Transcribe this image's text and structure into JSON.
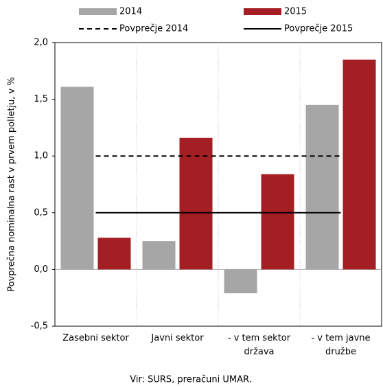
{
  "chart_data": {
    "type": "bar",
    "y_label": "Povprečna nominalna rast v prvem polletju, v %",
    "source": "Vir: SURS, preračuni UMAR.",
    "categories": [
      "Zasebni sektor",
      "Javni sektor",
      "- v tem sektor\ndržava",
      "- v tem javne\ndružbe"
    ],
    "series": [
      {
        "name": "2014",
        "type": "bar",
        "color": "#a6a6a6",
        "values": [
          1.61,
          0.25,
          -0.21,
          1.45
        ]
      },
      {
        "name": "2015",
        "type": "bar",
        "color": "#a31f24",
        "values": [
          0.28,
          1.16,
          0.84,
          1.85
        ]
      },
      {
        "name": "Povprečje 2014",
        "type": "line",
        "dash": true,
        "color": "#000000",
        "values": [
          1.0,
          1.0,
          1.0,
          1.0
        ]
      },
      {
        "name": "Povprečje 2015",
        "type": "line",
        "dash": false,
        "color": "#000000",
        "values": [
          0.5,
          0.5,
          0.5,
          0.5
        ]
      }
    ],
    "ylim": [
      -0.5,
      2.0
    ],
    "yticks": [
      {
        "value": -0.5,
        "label": "-0,5"
      },
      {
        "value": 0,
        "label": "0,0"
      },
      {
        "value": 0.5,
        "label": "0,5"
      },
      {
        "value": 1.0,
        "label": "1,0"
      },
      {
        "value": 1.5,
        "label": "1,5"
      },
      {
        "value": 2.0,
        "label": "2,0"
      }
    ],
    "grid": true
  }
}
